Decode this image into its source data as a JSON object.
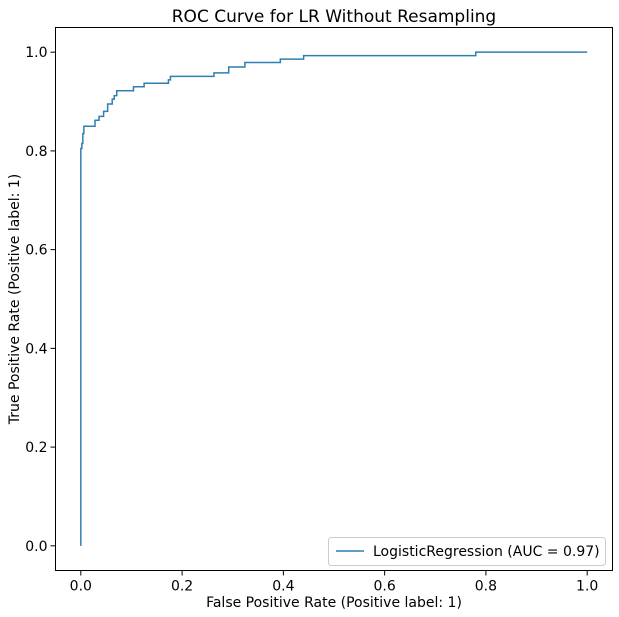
{
  "chart_data": {
    "type": "line",
    "title": "ROC Curve for LR Without Resampling",
    "xlabel": "False Positive Rate (Positive label: 1)",
    "ylabel": "True Positive Rate (Positive label: 1)",
    "xlim": [
      -0.05,
      1.05
    ],
    "ylim": [
      -0.05,
      1.05
    ],
    "xticks": [
      0.0,
      0.2,
      0.4,
      0.6,
      0.8,
      1.0
    ],
    "xtick_labels": [
      "0.0",
      "0.2",
      "0.4",
      "0.6",
      "0.8",
      "1.0"
    ],
    "yticks": [
      0.0,
      0.2,
      0.4,
      0.6,
      0.8,
      1.0
    ],
    "ytick_labels": [
      "0.0",
      "0.2",
      "0.4",
      "0.6",
      "0.8",
      "1.0"
    ],
    "grid": false,
    "legend_position": "lower-right",
    "colors": {
      "series": "#2f7fb1",
      "axes": "#000000",
      "legend_border": "#cccccc"
    },
    "series": [
      {
        "name": "LogisticRegression (AUC = 0.97)",
        "x": [
          0.0,
          0.0,
          0.002,
          0.002,
          0.004,
          0.004,
          0.006,
          0.006,
          0.028,
          0.028,
          0.036,
          0.036,
          0.045,
          0.045,
          0.053,
          0.053,
          0.062,
          0.062,
          0.066,
          0.066,
          0.071,
          0.071,
          0.104,
          0.104,
          0.125,
          0.125,
          0.173,
          0.173,
          0.177,
          0.177,
          0.263,
          0.263,
          0.292,
          0.292,
          0.324,
          0.324,
          0.394,
          0.394,
          0.44,
          0.44,
          0.78,
          0.78,
          1.0
        ],
        "y": [
          0.0,
          0.805,
          0.805,
          0.815,
          0.815,
          0.835,
          0.835,
          0.85,
          0.85,
          0.862,
          0.862,
          0.87,
          0.87,
          0.88,
          0.88,
          0.895,
          0.895,
          0.905,
          0.905,
          0.912,
          0.912,
          0.922,
          0.922,
          0.93,
          0.93,
          0.937,
          0.937,
          0.944,
          0.944,
          0.951,
          0.951,
          0.958,
          0.958,
          0.97,
          0.97,
          0.979,
          0.979,
          0.986,
          0.986,
          0.993,
          0.993,
          1.0,
          1.0
        ]
      }
    ]
  }
}
